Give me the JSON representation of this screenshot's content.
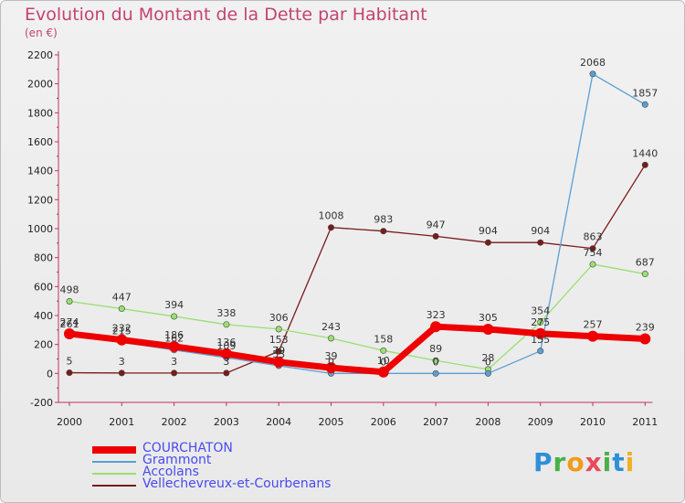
{
  "title": "Evolution du Montant de la Dette par Habitant",
  "subtitle": "(en €)",
  "logo_text": "Proxiti",
  "chart_data": {
    "type": "line",
    "title": "Evolution du Montant de la Dette par Habitant",
    "subtitle": "(en €)",
    "x": [
      "2000",
      "2001",
      "2002",
      "2003",
      "2004",
      "2005",
      "2006",
      "2007",
      "2008",
      "2009",
      "2010",
      "2011"
    ],
    "yticks": [
      "-200",
      "0",
      "200",
      "400",
      "600",
      "800",
      "1000",
      "1200",
      "1400",
      "1600",
      "1800",
      "2000",
      "2200"
    ],
    "ylim": [
      -200,
      2200
    ],
    "grid": false,
    "legend": "bottom-left",
    "series": [
      {
        "name": "Vellechevreux-et-Courbenans",
        "color": "#7a1a1a",
        "width": 1.3,
        "values": [
          5,
          3,
          3,
          3,
          153,
          1008,
          983,
          947,
          904,
          904,
          863,
          1440
        ]
      },
      {
        "name": "Accolans",
        "color": "#99e070",
        "width": 1.3,
        "values": [
          498,
          447,
          394,
          338,
          306,
          243,
          158,
          89,
          28,
          354,
          754,
          687
        ]
      },
      {
        "name": "Grammont",
        "color": "#5a9fd4",
        "width": 1.3,
        "values": [
          261,
          215,
          162,
          109,
          53,
          0,
          0,
          0,
          0,
          155,
          2068,
          1857
        ]
      },
      {
        "name": "COURCHATON",
        "color": "#ee0000",
        "width": 7,
        "values": [
          274,
          232,
          186,
          136,
          79,
          39,
          10,
          323,
          305,
          275,
          257,
          239
        ]
      }
    ]
  }
}
